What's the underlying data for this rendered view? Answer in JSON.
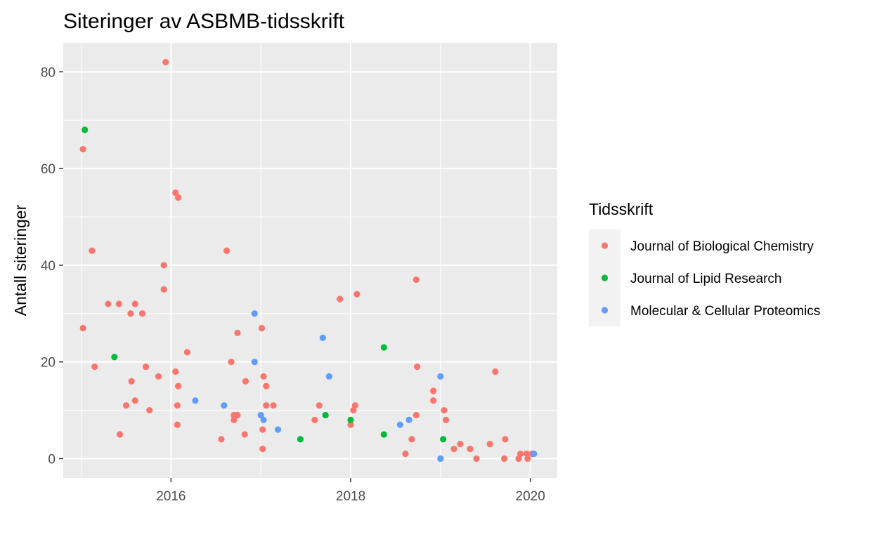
{
  "chart_data": {
    "type": "scatter",
    "title": "Siteringer av ASBMB-tidsskrift",
    "xlabel": "",
    "ylabel": "Antall siteringer",
    "x_unit": "year",
    "xlim": [
      2014.8,
      2020.3
    ],
    "ylim": [
      -4,
      86
    ],
    "x_ticks": [
      2016,
      2018,
      2020
    ],
    "x_tick_labels": [
      "2016",
      "2018",
      "2020"
    ],
    "y_ticks": [
      0,
      20,
      40,
      60,
      80
    ],
    "y_tick_labels": [
      "0",
      "20",
      "40",
      "60",
      "80"
    ],
    "grid": true,
    "legend": {
      "title": "Tidsskrift",
      "placement": "right"
    },
    "series": [
      {
        "name": "Journal of Biological Chemistry",
        "color": "#F8766D",
        "points": [
          [
            2015.02,
            64
          ],
          [
            2015.02,
            27
          ],
          [
            2015.12,
            43
          ],
          [
            2015.15,
            19
          ],
          [
            2015.3,
            32
          ],
          [
            2015.42,
            32
          ],
          [
            2015.43,
            5
          ],
          [
            2015.5,
            11
          ],
          [
            2015.55,
            30
          ],
          [
            2015.56,
            16
          ],
          [
            2015.6,
            12
          ],
          [
            2015.6,
            32
          ],
          [
            2015.68,
            30
          ],
          [
            2015.72,
            19
          ],
          [
            2015.76,
            10
          ],
          [
            2015.86,
            17
          ],
          [
            2015.92,
            40
          ],
          [
            2015.92,
            35
          ],
          [
            2015.94,
            82
          ],
          [
            2016.05,
            55
          ],
          [
            2016.05,
            18
          ],
          [
            2016.07,
            11
          ],
          [
            2016.07,
            7
          ],
          [
            2016.08,
            15
          ],
          [
            2016.08,
            54
          ],
          [
            2016.18,
            22
          ],
          [
            2016.56,
            4
          ],
          [
            2016.62,
            43
          ],
          [
            2016.67,
            20
          ],
          [
            2016.7,
            9
          ],
          [
            2016.7,
            8
          ],
          [
            2016.74,
            9
          ],
          [
            2016.74,
            26
          ],
          [
            2016.82,
            5
          ],
          [
            2016.83,
            16
          ],
          [
            2017.01,
            27
          ],
          [
            2017.02,
            2
          ],
          [
            2017.02,
            6
          ],
          [
            2017.03,
            17
          ],
          [
            2017.06,
            15
          ],
          [
            2017.06,
            11
          ],
          [
            2017.14,
            11
          ],
          [
            2017.6,
            8
          ],
          [
            2017.65,
            11
          ],
          [
            2017.88,
            33
          ],
          [
            2018.0,
            7
          ],
          [
            2018.03,
            10
          ],
          [
            2018.05,
            11
          ],
          [
            2018.07,
            34
          ],
          [
            2018.61,
            1
          ],
          [
            2018.68,
            4
          ],
          [
            2018.73,
            9
          ],
          [
            2018.73,
            37
          ],
          [
            2018.74,
            19
          ],
          [
            2018.92,
            14
          ],
          [
            2018.92,
            12
          ],
          [
            2019.04,
            10
          ],
          [
            2019.06,
            8
          ],
          [
            2019.15,
            2
          ],
          [
            2019.22,
            3
          ],
          [
            2019.33,
            2
          ],
          [
            2019.4,
            0
          ],
          [
            2019.55,
            3
          ],
          [
            2019.61,
            18
          ],
          [
            2019.71,
            0
          ],
          [
            2019.72,
            4
          ],
          [
            2019.87,
            0
          ],
          [
            2019.89,
            1
          ],
          [
            2019.96,
            1
          ],
          [
            2019.97,
            0
          ],
          [
            2020.02,
            1
          ]
        ]
      },
      {
        "name": "Journal of Lipid Research",
        "color": "#00BA38",
        "points": [
          [
            2015.04,
            68
          ],
          [
            2015.37,
            21
          ],
          [
            2017.44,
            4
          ],
          [
            2017.72,
            9
          ],
          [
            2018.0,
            8
          ],
          [
            2018.37,
            23
          ],
          [
            2018.37,
            5
          ],
          [
            2019.03,
            4
          ]
        ]
      },
      {
        "name": "Molecular & Cellular Proteomics",
        "color": "#619CFF",
        "points": [
          [
            2016.27,
            12
          ],
          [
            2016.59,
            11
          ],
          [
            2016.93,
            30
          ],
          [
            2016.93,
            20
          ],
          [
            2017.0,
            9
          ],
          [
            2017.03,
            8
          ],
          [
            2017.19,
            6
          ],
          [
            2017.69,
            25
          ],
          [
            2017.76,
            17
          ],
          [
            2018.55,
            7
          ],
          [
            2018.65,
            8
          ],
          [
            2019.0,
            17
          ],
          [
            2019.0,
            0
          ],
          [
            2020.04,
            1
          ]
        ]
      }
    ]
  }
}
